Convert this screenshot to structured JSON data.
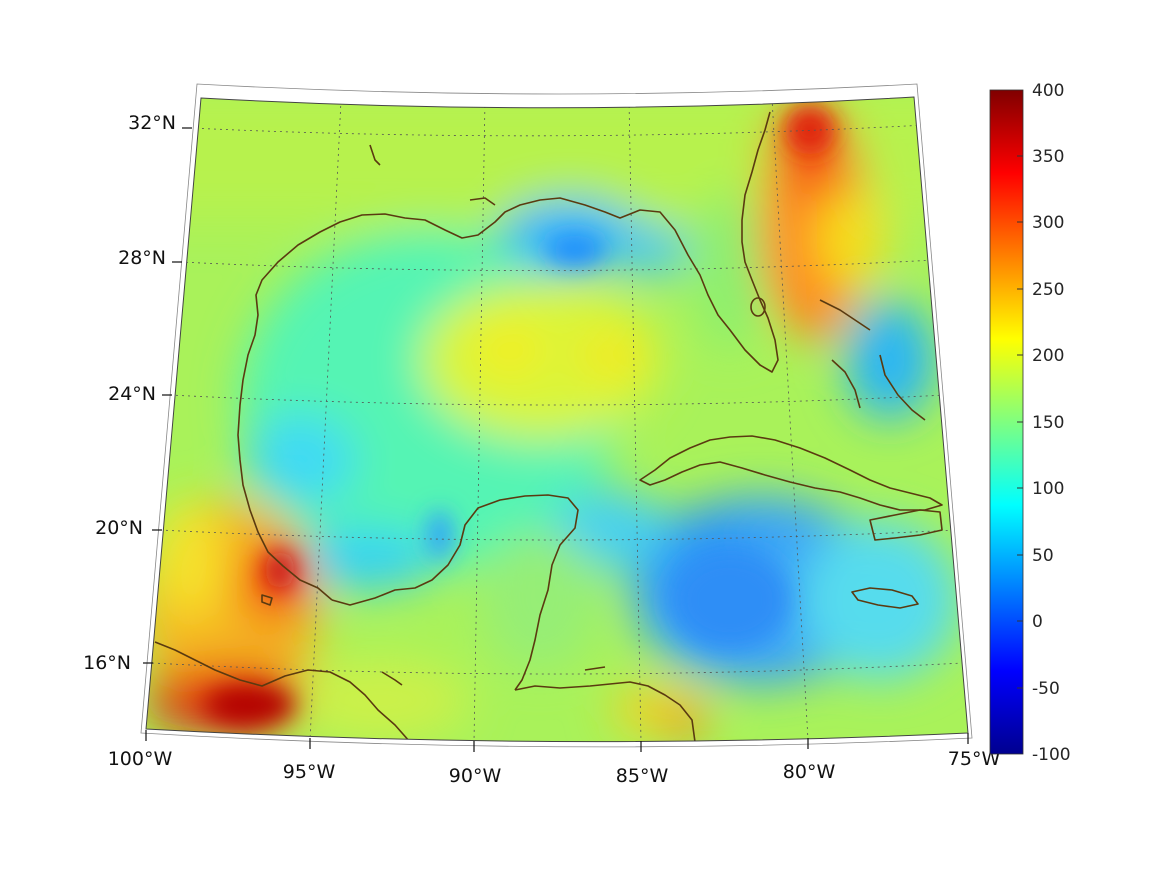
{
  "map": {
    "lat_labels": [
      "32°N",
      "28°N",
      "24°N",
      "20°N",
      "16°N"
    ],
    "lon_labels": [
      "100°W",
      "95°W",
      "90°W",
      "85°W",
      "80°W",
      "75°W"
    ],
    "extent": {
      "lon": [
        -100,
        -75
      ],
      "lat": [
        14,
        33
      ]
    },
    "coastline_color": "#5a3a10",
    "grid_color": "#555555"
  },
  "colorbar": {
    "labels": [
      "400",
      "350",
      "300",
      "250",
      "200",
      "150",
      "100",
      "50",
      "0",
      "-50",
      "-100"
    ],
    "range": [
      -100,
      400
    ],
    "colormap": "jet"
  }
}
